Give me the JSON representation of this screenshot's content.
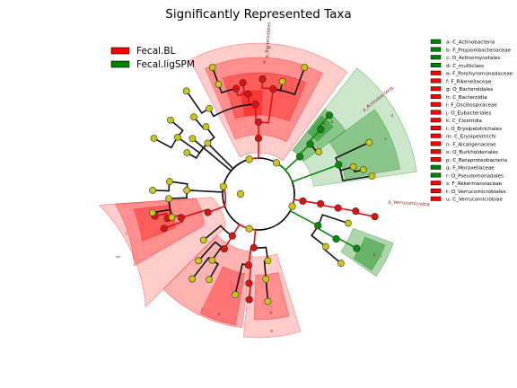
{
  "title": "Significantly Represented Taxa",
  "groups": [
    {
      "name": "Fecal.BL",
      "color": "#ff0000"
    },
    {
      "name": "Fecal.ligSPM",
      "color": "#008000"
    }
  ],
  "colors": {
    "red_fill": "#ff0000",
    "green_fill": "#008000",
    "node_yellow": "#c8c814",
    "node_red": "#e01010",
    "node_green": "#0a8a0a"
  },
  "taxa": [
    {
      "key": "a",
      "label": "a: C_Actinobacteria",
      "group": "Fecal.ligSPM"
    },
    {
      "key": "b",
      "label": "b: F_Propionibacteriaceae",
      "group": "Fecal.ligSPM"
    },
    {
      "key": "c",
      "label": "c: O_Actinomycetales",
      "group": "Fecal.ligSPM"
    },
    {
      "key": "d",
      "label": "d: C_multiclass",
      "group": "Fecal.ligSPM"
    },
    {
      "key": "e",
      "label": "e: F_Porphyromonadaceae",
      "group": "Fecal.BL"
    },
    {
      "key": "f",
      "label": "f: F_Rikenellaceae",
      "group": "Fecal.BL"
    },
    {
      "key": "g",
      "label": "g: O_Bacteroidales",
      "group": "Fecal.BL"
    },
    {
      "key": "h",
      "label": "h: C_Bacteroidia",
      "group": "Fecal.BL"
    },
    {
      "key": "i",
      "label": "i: F_Oscillospiraceae",
      "group": "Fecal.BL"
    },
    {
      "key": "j",
      "label": "j: O_Eubacteriales",
      "group": "Fecal.BL"
    },
    {
      "key": "k",
      "label": "k: C_Clostridia",
      "group": "Fecal.BL"
    },
    {
      "key": "l",
      "label": "l: O_Erysipelotrichales",
      "group": "Fecal.BL"
    },
    {
      "key": "m",
      "label": "m: C_Erysipelotrichi",
      "group": "Fecal.BL"
    },
    {
      "key": "n",
      "label": "n: F_Alcaligenaceae",
      "group": "Fecal.BL"
    },
    {
      "key": "o",
      "label": "o: O_Burkholderiales",
      "group": "Fecal.BL"
    },
    {
      "key": "p",
      "label": "p: C_Betaproteobacteria",
      "group": "Fecal.BL"
    },
    {
      "key": "q",
      "label": "q: F_Moraxellaceae",
      "group": "Fecal.ligSPM"
    },
    {
      "key": "r",
      "label": "r: O_Pseudomonadales",
      "group": "Fecal.ligSPM"
    },
    {
      "key": "s",
      "label": "s: F_Akkermansiaceae",
      "group": "Fecal.BL"
    },
    {
      "key": "t",
      "label": "t: O_Verrucomicrobiales",
      "group": "Fecal.BL"
    },
    {
      "key": "u",
      "label": "u: C_Verrucomicrobiae",
      "group": "Fecal.BL"
    }
  ],
  "phylum_labels": [
    "p_Bacteroidetes",
    "p_Actinobacteria",
    "p_Verrucomicrobia"
  ],
  "sector_letters": [
    "h",
    "g",
    "f",
    "e",
    "d",
    "c",
    "b",
    "a",
    "u",
    "t",
    "s",
    "r",
    "q",
    "p",
    "o",
    "n",
    "m",
    "l",
    "k",
    "j",
    "i"
  ]
}
